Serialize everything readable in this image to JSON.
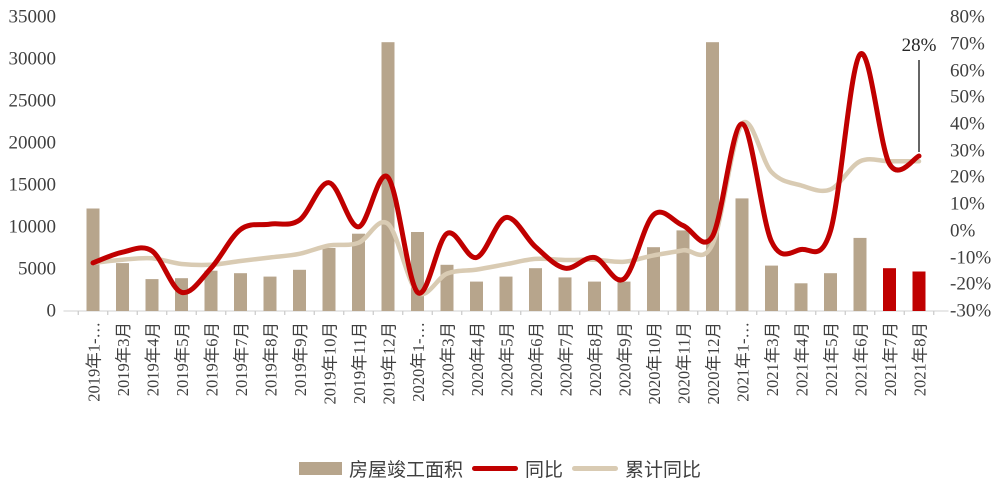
{
  "chart_data": {
    "type": "bar",
    "subtype": "combo-bar-line",
    "title": "",
    "categories": [
      "2019年1-…",
      "2019年3月",
      "2019年4月",
      "2019年5月",
      "2019年6月",
      "2019年7月",
      "2019年8月",
      "2019年9月",
      "2019年10月",
      "2019年11月",
      "2019年12月",
      "2020年1-…",
      "2020年3月",
      "2020年4月",
      "2020年5月",
      "2020年6月",
      "2020年7月",
      "2020年8月",
      "2020年9月",
      "2020年10月",
      "2020年11月",
      "2020年12月",
      "2021年1-…",
      "2021年3月",
      "2021年4月",
      "2021年5月",
      "2021年6月",
      "2021年7月",
      "2021年8月"
    ],
    "series": [
      {
        "name": "房屋竣工面积",
        "type": "bar",
        "axis": "left",
        "color": "#b7a58c",
        "highlight_color": "#c00000",
        "highlight_from_index": 27,
        "values": [
          12200,
          5700,
          3800,
          3900,
          4800,
          4500,
          4100,
          4900,
          7500,
          9200,
          32000,
          9400,
          5500,
          3500,
          4100,
          5100,
          4000,
          3500,
          3500,
          7600,
          9600,
          32000,
          13400,
          5400,
          3300,
          4500,
          8700,
          5100,
          4700
        ]
      },
      {
        "name": "同比",
        "type": "line",
        "axis": "right",
        "color": "#c00000",
        "values": [
          -12,
          -8,
          -7.5,
          -23,
          -14,
          0.5,
          2.5,
          4,
          18,
          1.5,
          20,
          -23,
          -1,
          -10,
          5,
          -6,
          -14,
          -10,
          -18,
          6,
          2,
          -2,
          40,
          -4,
          -7,
          0,
          66,
          25,
          28
        ]
      },
      {
        "name": "累计同比",
        "type": "line",
        "axis": "right",
        "color": "#d9cbb3",
        "values": [
          -12,
          -10.8,
          -10.3,
          -12.4,
          -12.7,
          -11.3,
          -10,
          -8.6,
          -5.5,
          -4.5,
          2.6,
          -23,
          -16,
          -14.5,
          -12.5,
          -10.5,
          -10.9,
          -10.8,
          -11.6,
          -9.2,
          -7.3,
          -5,
          40,
          22,
          17,
          15.5,
          26,
          26,
          26
        ]
      }
    ],
    "left_axis": {
      "min": 0,
      "max": 35000,
      "tick_step": 5000,
      "ticks": [
        "35000",
        "30000",
        "25000",
        "20000",
        "15000",
        "10000",
        "5000",
        "0"
      ]
    },
    "right_axis": {
      "min": -30,
      "max": 80,
      "tick_step": 10,
      "ticks": [
        "80%",
        "70%",
        "60%",
        "50%",
        "40%",
        "30%",
        "20%",
        "10%",
        "0%",
        "-10%",
        "-20%",
        "-30%"
      ]
    },
    "annotation": {
      "label": "28%",
      "category_index": 28,
      "value": 28
    },
    "grid": "off",
    "legend_position": "bottom",
    "colors": {
      "axis_line": "#d9d9d9",
      "tick_mark": "#c9c9c9",
      "label_text": "#3f3f3f",
      "annotation_line": "#404040"
    }
  }
}
